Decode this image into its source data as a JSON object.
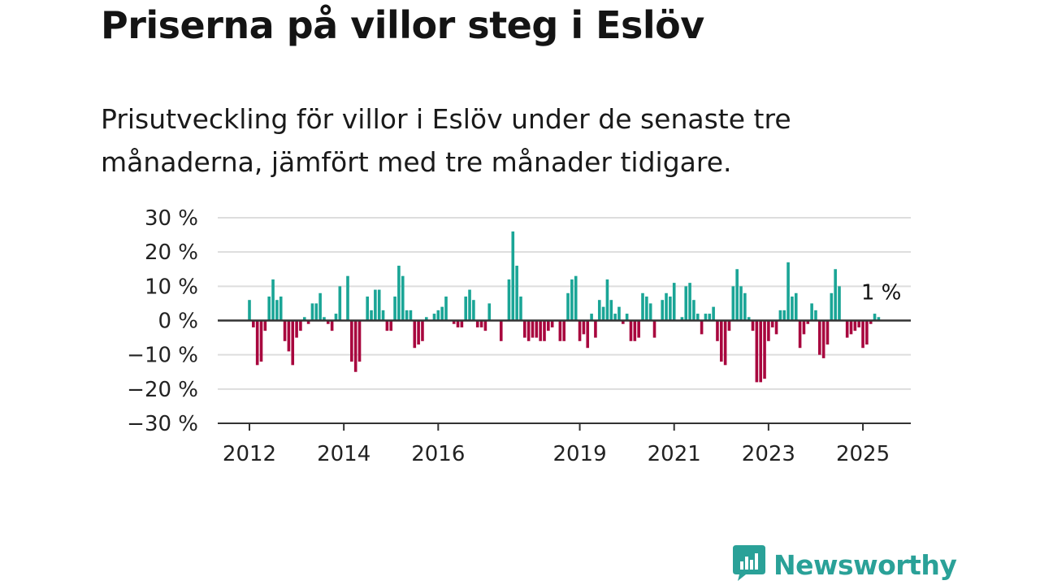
{
  "title": "Priserna på villor steg i Eslöv",
  "subtitle": "Prisutveckling för villor i Eslöv under de senaste tre månaderna, jämfört med tre månader tidigare.",
  "brand": {
    "name": "Newsworthy",
    "icon": "newsworthy-chart-bubble-icon"
  },
  "colors": {
    "positive": "#1aa596",
    "negative": "#a8063e",
    "gridline": "#dddddd",
    "zero_line": "#333333",
    "brand": "#2aa198"
  },
  "chart_data": {
    "type": "bar",
    "title": "Priserna på villor steg i Eslöv",
    "subtitle": "Prisutveckling för villor i Eslöv under de senaste tre månaderna, jämfört med tre månader tidigare.",
    "xlabel": "",
    "ylabel": "",
    "ylim": [
      -30,
      30
    ],
    "y_ticks": [
      30,
      20,
      10,
      0,
      -10,
      -20,
      -30
    ],
    "y_tick_labels": [
      "30 %",
      "20 %",
      "10 %",
      "0 %",
      "−10 %",
      "−20 %",
      "−30 %"
    ],
    "x_ticks": [
      2012,
      2014,
      2016,
      2019,
      2021,
      2023,
      2025
    ],
    "x_tick_labels": [
      "2012",
      "2014",
      "2016",
      "2019",
      "2021",
      "2023",
      "2025"
    ],
    "start": "2012-01",
    "frequency": "monthly",
    "grid": true,
    "last_value_label": "1 %",
    "values": [
      6,
      -2,
      -13,
      -12,
      -3,
      7,
      12,
      6,
      7,
      -6,
      -9,
      -13,
      -5,
      -3,
      1,
      -1,
      5,
      5,
      8,
      1,
      -1,
      -3,
      2,
      10,
      0,
      13,
      -12,
      -15,
      -12,
      0,
      7,
      3,
      9,
      9,
      3,
      -3,
      -3,
      7,
      16,
      13,
      3,
      3,
      -8,
      -7,
      -6,
      1,
      0,
      2,
      3,
      4,
      7,
      0,
      -1,
      -2,
      -2,
      7,
      9,
      6,
      -2,
      -2,
      -3,
      5,
      0,
      0,
      -6,
      0,
      12,
      26,
      16,
      7,
      -5,
      -6,
      -5,
      -5,
      -6,
      -6,
      -3,
      -2,
      0,
      -6,
      -6,
      8,
      12,
      13,
      -6,
      -4,
      -8,
      2,
      -5,
      6,
      4,
      12,
      6,
      2,
      4,
      -1,
      2,
      -6,
      -6,
      -5,
      8,
      7,
      5,
      -5,
      0,
      6,
      8,
      7,
      11,
      0,
      1,
      10,
      11,
      6,
      2,
      -4,
      2,
      2,
      4,
      -6,
      -12,
      -13,
      -3,
      10,
      15,
      10,
      8,
      1,
      -3,
      -18,
      -18,
      -17,
      -6,
      -2,
      -4,
      3,
      3,
      17,
      7,
      8,
      -8,
      -4,
      -1,
      5,
      3,
      -10,
      -11,
      -7,
      8,
      15,
      10,
      0,
      -5,
      -4,
      -3,
      -2,
      -8,
      -7,
      -1,
      2,
      1
    ]
  }
}
